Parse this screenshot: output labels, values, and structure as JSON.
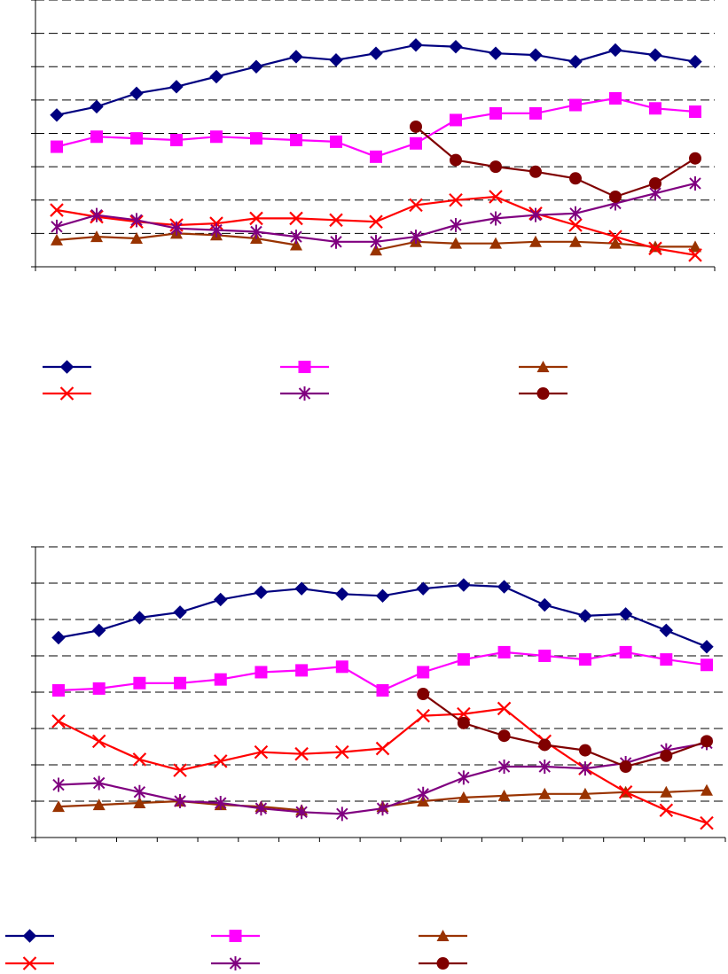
{
  "chart_data": [
    {
      "type": "line",
      "title": "",
      "xlabel": "",
      "ylabel": "",
      "grid": true,
      "legend": "bottom",
      "ylim": [
        0,
        8
      ],
      "x": [
        1,
        2,
        3,
        4,
        5,
        6,
        7,
        8,
        9,
        10,
        11,
        12,
        13,
        14,
        15,
        16,
        17
      ],
      "series": [
        {
          "color": "#000080",
          "marker": "diamond",
          "values": [
            4.55,
            4.8,
            5.2,
            5.4,
            5.7,
            6.0,
            6.3,
            6.2,
            6.4,
            6.65,
            6.6,
            6.4,
            6.35,
            6.15,
            6.5,
            6.35,
            6.15
          ]
        },
        {
          "color": "#FF00FF",
          "marker": "square",
          "values": [
            3.6,
            3.9,
            3.85,
            3.8,
            3.9,
            3.85,
            3.8,
            3.75,
            3.3,
            3.7,
            4.4,
            4.6,
            4.6,
            4.85,
            5.05,
            4.75,
            4.65
          ]
        },
        {
          "color": "#993300",
          "marker": "triangle",
          "values": [
            0.8,
            0.9,
            0.85,
            1.0,
            0.95,
            0.85,
            0.65,
            null,
            0.5,
            0.75,
            0.7,
            0.7,
            0.75,
            0.75,
            0.7,
            0.6,
            0.6
          ]
        },
        {
          "color": "#FF0000",
          "marker": "x",
          "values": [
            1.7,
            1.5,
            1.35,
            1.25,
            1.3,
            1.45,
            1.45,
            1.4,
            1.35,
            1.85,
            2.0,
            2.1,
            1.6,
            1.25,
            0.9,
            0.55,
            0.35
          ]
        },
        {
          "color": "#800080",
          "marker": "star",
          "values": [
            1.2,
            1.55,
            1.4,
            1.15,
            1.1,
            1.05,
            0.9,
            0.75,
            0.75,
            0.9,
            1.25,
            1.45,
            1.55,
            1.6,
            1.9,
            2.2,
            2.5
          ]
        },
        {
          "color": "#800000",
          "marker": "circle",
          "values": [
            null,
            null,
            null,
            null,
            null,
            null,
            null,
            null,
            null,
            4.2,
            3.2,
            3.0,
            2.85,
            2.65,
            2.1,
            2.5,
            3.25
          ]
        }
      ]
    },
    {
      "type": "line",
      "title": "",
      "xlabel": "",
      "ylabel": "",
      "grid": true,
      "legend": "bottom",
      "ylim": [
        0,
        8
      ],
      "x": [
        1,
        2,
        3,
        4,
        5,
        6,
        7,
        8,
        9,
        10,
        11,
        12,
        13,
        14,
        15,
        16,
        17
      ],
      "series": [
        {
          "color": "#000080",
          "marker": "diamond",
          "values": [
            5.5,
            5.7,
            6.05,
            6.2,
            6.55,
            6.75,
            6.85,
            6.7,
            6.65,
            6.85,
            6.95,
            6.9,
            6.4,
            6.1,
            6.15,
            5.7,
            5.25
          ]
        },
        {
          "color": "#FF00FF",
          "marker": "square",
          "values": [
            4.05,
            4.1,
            4.25,
            4.25,
            4.35,
            4.55,
            4.6,
            4.7,
            4.05,
            4.55,
            4.9,
            5.1,
            5.0,
            4.9,
            5.1,
            4.9,
            4.75
          ]
        },
        {
          "color": "#993300",
          "marker": "triangle",
          "values": [
            0.85,
            0.9,
            0.95,
            1.0,
            0.9,
            0.85,
            0.75,
            null,
            0.85,
            1.0,
            1.1,
            1.15,
            1.2,
            1.2,
            1.25,
            1.25,
            1.3
          ]
        },
        {
          "color": "#FF0000",
          "marker": "x",
          "values": [
            3.2,
            2.65,
            2.15,
            1.85,
            2.1,
            2.35,
            2.3,
            2.35,
            2.45,
            3.35,
            3.4,
            3.55,
            2.65,
            1.9,
            1.25,
            0.75,
            0.4
          ]
        },
        {
          "color": "#800080",
          "marker": "star",
          "values": [
            1.45,
            1.5,
            1.25,
            1.0,
            0.95,
            0.8,
            0.7,
            0.65,
            0.8,
            1.2,
            1.65,
            1.95,
            1.95,
            1.9,
            2.05,
            2.4,
            2.6
          ]
        },
        {
          "color": "#800000",
          "marker": "circle",
          "values": [
            null,
            null,
            null,
            null,
            null,
            null,
            null,
            null,
            null,
            3.95,
            3.15,
            2.8,
            2.55,
            2.4,
            1.95,
            2.25,
            2.65
          ]
        }
      ]
    }
  ]
}
